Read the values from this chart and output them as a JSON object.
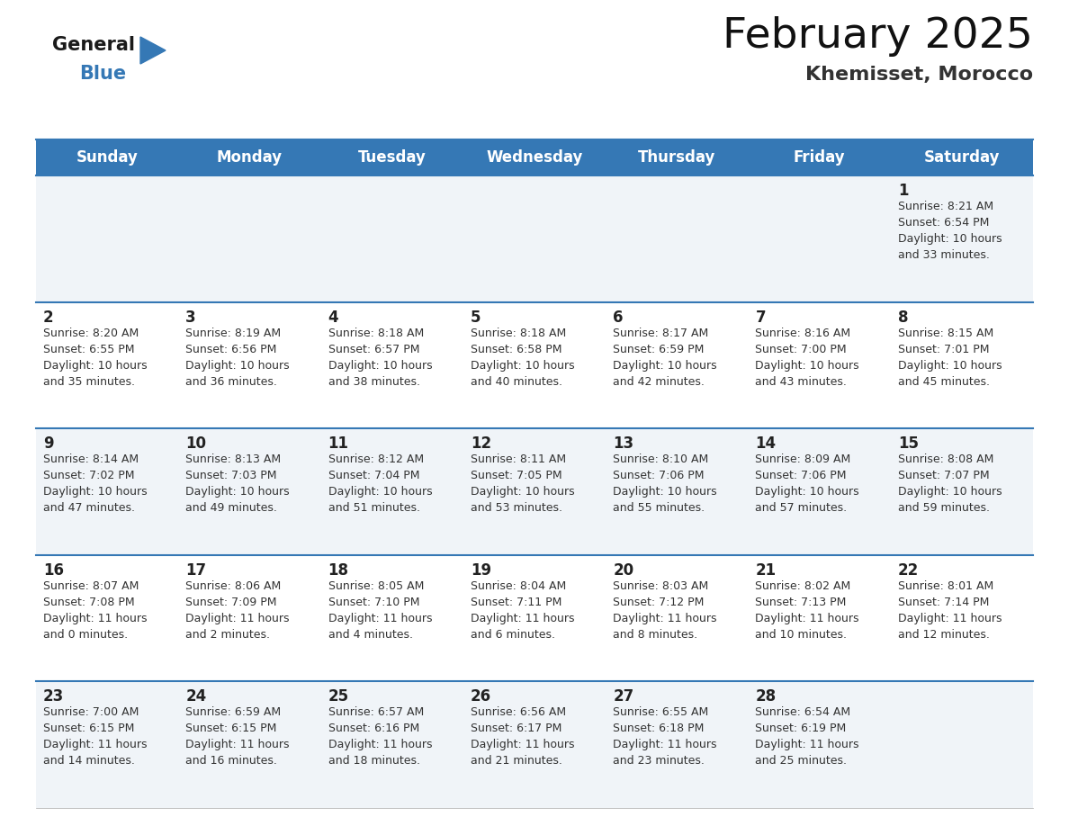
{
  "title": "February 2025",
  "subtitle": "Khemisset, Morocco",
  "header_bg_color": "#3578b5",
  "header_text_color": "#ffffff",
  "separator_color": "#3578b5",
  "cell_bg_odd": "#f0f4f8",
  "cell_bg_even": "#ffffff",
  "day_number_color": "#222222",
  "info_text_color": "#333333",
  "days_of_week": [
    "Sunday",
    "Monday",
    "Tuesday",
    "Wednesday",
    "Thursday",
    "Friday",
    "Saturday"
  ],
  "weeks": [
    [
      {
        "day": null,
        "info": null
      },
      {
        "day": null,
        "info": null
      },
      {
        "day": null,
        "info": null
      },
      {
        "day": null,
        "info": null
      },
      {
        "day": null,
        "info": null
      },
      {
        "day": null,
        "info": null
      },
      {
        "day": "1",
        "info": "Sunrise: 8:21 AM\nSunset: 6:54 PM\nDaylight: 10 hours\nand 33 minutes."
      }
    ],
    [
      {
        "day": "2",
        "info": "Sunrise: 8:20 AM\nSunset: 6:55 PM\nDaylight: 10 hours\nand 35 minutes."
      },
      {
        "day": "3",
        "info": "Sunrise: 8:19 AM\nSunset: 6:56 PM\nDaylight: 10 hours\nand 36 minutes."
      },
      {
        "day": "4",
        "info": "Sunrise: 8:18 AM\nSunset: 6:57 PM\nDaylight: 10 hours\nand 38 minutes."
      },
      {
        "day": "5",
        "info": "Sunrise: 8:18 AM\nSunset: 6:58 PM\nDaylight: 10 hours\nand 40 minutes."
      },
      {
        "day": "6",
        "info": "Sunrise: 8:17 AM\nSunset: 6:59 PM\nDaylight: 10 hours\nand 42 minutes."
      },
      {
        "day": "7",
        "info": "Sunrise: 8:16 AM\nSunset: 7:00 PM\nDaylight: 10 hours\nand 43 minutes."
      },
      {
        "day": "8",
        "info": "Sunrise: 8:15 AM\nSunset: 7:01 PM\nDaylight: 10 hours\nand 45 minutes."
      }
    ],
    [
      {
        "day": "9",
        "info": "Sunrise: 8:14 AM\nSunset: 7:02 PM\nDaylight: 10 hours\nand 47 minutes."
      },
      {
        "day": "10",
        "info": "Sunrise: 8:13 AM\nSunset: 7:03 PM\nDaylight: 10 hours\nand 49 minutes."
      },
      {
        "day": "11",
        "info": "Sunrise: 8:12 AM\nSunset: 7:04 PM\nDaylight: 10 hours\nand 51 minutes."
      },
      {
        "day": "12",
        "info": "Sunrise: 8:11 AM\nSunset: 7:05 PM\nDaylight: 10 hours\nand 53 minutes."
      },
      {
        "day": "13",
        "info": "Sunrise: 8:10 AM\nSunset: 7:06 PM\nDaylight: 10 hours\nand 55 minutes."
      },
      {
        "day": "14",
        "info": "Sunrise: 8:09 AM\nSunset: 7:06 PM\nDaylight: 10 hours\nand 57 minutes."
      },
      {
        "day": "15",
        "info": "Sunrise: 8:08 AM\nSunset: 7:07 PM\nDaylight: 10 hours\nand 59 minutes."
      }
    ],
    [
      {
        "day": "16",
        "info": "Sunrise: 8:07 AM\nSunset: 7:08 PM\nDaylight: 11 hours\nand 0 minutes."
      },
      {
        "day": "17",
        "info": "Sunrise: 8:06 AM\nSunset: 7:09 PM\nDaylight: 11 hours\nand 2 minutes."
      },
      {
        "day": "18",
        "info": "Sunrise: 8:05 AM\nSunset: 7:10 PM\nDaylight: 11 hours\nand 4 minutes."
      },
      {
        "day": "19",
        "info": "Sunrise: 8:04 AM\nSunset: 7:11 PM\nDaylight: 11 hours\nand 6 minutes."
      },
      {
        "day": "20",
        "info": "Sunrise: 8:03 AM\nSunset: 7:12 PM\nDaylight: 11 hours\nand 8 minutes."
      },
      {
        "day": "21",
        "info": "Sunrise: 8:02 AM\nSunset: 7:13 PM\nDaylight: 11 hours\nand 10 minutes."
      },
      {
        "day": "22",
        "info": "Sunrise: 8:01 AM\nSunset: 7:14 PM\nDaylight: 11 hours\nand 12 minutes."
      }
    ],
    [
      {
        "day": "23",
        "info": "Sunrise: 7:00 AM\nSunset: 6:15 PM\nDaylight: 11 hours\nand 14 minutes."
      },
      {
        "day": "24",
        "info": "Sunrise: 6:59 AM\nSunset: 6:15 PM\nDaylight: 11 hours\nand 16 minutes."
      },
      {
        "day": "25",
        "info": "Sunrise: 6:57 AM\nSunset: 6:16 PM\nDaylight: 11 hours\nand 18 minutes."
      },
      {
        "day": "26",
        "info": "Sunrise: 6:56 AM\nSunset: 6:17 PM\nDaylight: 11 hours\nand 21 minutes."
      },
      {
        "day": "27",
        "info": "Sunrise: 6:55 AM\nSunset: 6:18 PM\nDaylight: 11 hours\nand 23 minutes."
      },
      {
        "day": "28",
        "info": "Sunrise: 6:54 AM\nSunset: 6:19 PM\nDaylight: 11 hours\nand 25 minutes."
      },
      {
        "day": null,
        "info": null
      }
    ]
  ],
  "logo_triangle_color": "#3578b5",
  "title_fontsize": 34,
  "subtitle_fontsize": 16,
  "header_fontsize": 12,
  "day_number_fontsize": 12,
  "info_fontsize": 9
}
